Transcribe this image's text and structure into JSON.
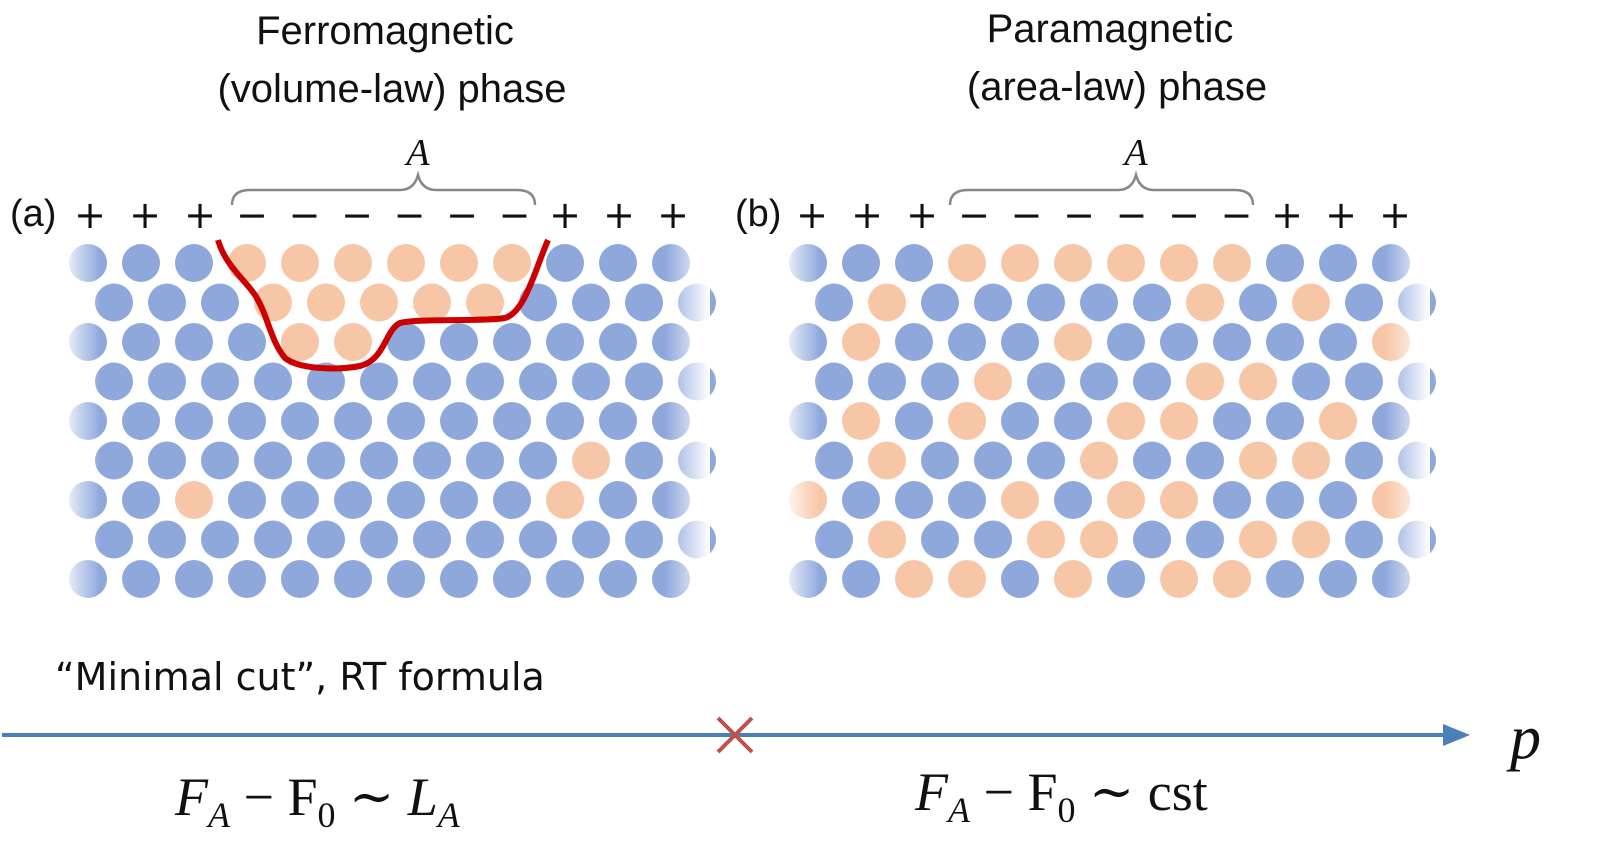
{
  "panel_a": {
    "title": [
      "Ferromagnetic",
      "(volume-law) phase"
    ],
    "label": "(a)",
    "region": "A",
    "signs": [
      "+",
      "+",
      "+",
      "−",
      "−",
      "−",
      "−",
      "−",
      "−",
      "+",
      "+",
      "+"
    ]
  },
  "panel_b": {
    "title": [
      "Paramagnetic",
      "(area-law) phase"
    ],
    "label": "(b)",
    "region": "A",
    "signs": [
      "+",
      "+",
      "+",
      "−",
      "−",
      "−",
      "−",
      "−",
      "−",
      "+",
      "+",
      "+"
    ]
  },
  "caption": "“Minimal cut”, RT formula",
  "axis_label": "p",
  "formula_left": {
    "base": [
      "F",
      " − F",
      " ∼ L"
    ],
    "sub": [
      "A",
      "0",
      "A"
    ]
  },
  "formula_right": {
    "base": [
      "F",
      " − F",
      " ∼ cst"
    ],
    "sub": [
      "A",
      "0"
    ]
  }
}
